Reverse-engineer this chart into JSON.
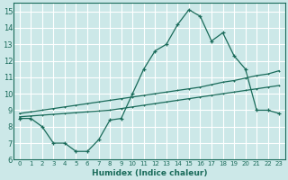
{
  "xlabel": "Humidex (Indice chaleur)",
  "xlim": [
    -0.5,
    23.5
  ],
  "ylim": [
    6,
    15.5
  ],
  "xticks": [
    0,
    1,
    2,
    3,
    4,
    5,
    6,
    7,
    8,
    9,
    10,
    11,
    12,
    13,
    14,
    15,
    16,
    17,
    18,
    19,
    20,
    21,
    22,
    23
  ],
  "yticks": [
    6,
    7,
    8,
    9,
    10,
    11,
    12,
    13,
    14,
    15
  ],
  "bg_color": "#cce8e8",
  "line_color": "#1a6b5a",
  "grid_color": "#ffffff",
  "series1_x": [
    0,
    1,
    2,
    3,
    4,
    5,
    6,
    7,
    8,
    9,
    10,
    11,
    12,
    13,
    14,
    15,
    16,
    17,
    18,
    19,
    20,
    21,
    22,
    23
  ],
  "series1_y": [
    8.5,
    8.5,
    8.0,
    7.0,
    7.0,
    6.5,
    6.5,
    7.2,
    8.4,
    8.5,
    10.0,
    11.5,
    12.6,
    13.0,
    14.2,
    15.1,
    14.7,
    13.2,
    13.7,
    12.3,
    11.5,
    9.0,
    9.0,
    8.8
  ],
  "series2_x": [
    0,
    1,
    2,
    3,
    4,
    5,
    6,
    7,
    8,
    9,
    10,
    11,
    12,
    13,
    14,
    15,
    16,
    17,
    18,
    19,
    20,
    21,
    22,
    23
  ],
  "series2_y": [
    8.6,
    8.65,
    8.7,
    8.75,
    8.8,
    8.85,
    8.9,
    8.95,
    9.0,
    9.1,
    9.2,
    9.3,
    9.4,
    9.5,
    9.6,
    9.7,
    9.8,
    9.9,
    10.0,
    10.1,
    10.2,
    10.3,
    10.4,
    10.5
  ],
  "series3_x": [
    0,
    1,
    2,
    3,
    4,
    5,
    6,
    7,
    8,
    9,
    10,
    11,
    12,
    13,
    14,
    15,
    16,
    17,
    18,
    19,
    20,
    21,
    22,
    23
  ],
  "series3_y": [
    8.8,
    8.9,
    9.0,
    9.1,
    9.2,
    9.3,
    9.4,
    9.5,
    9.6,
    9.7,
    9.8,
    9.9,
    10.0,
    10.1,
    10.2,
    10.3,
    10.4,
    10.55,
    10.7,
    10.8,
    10.95,
    11.1,
    11.2,
    11.4
  ]
}
